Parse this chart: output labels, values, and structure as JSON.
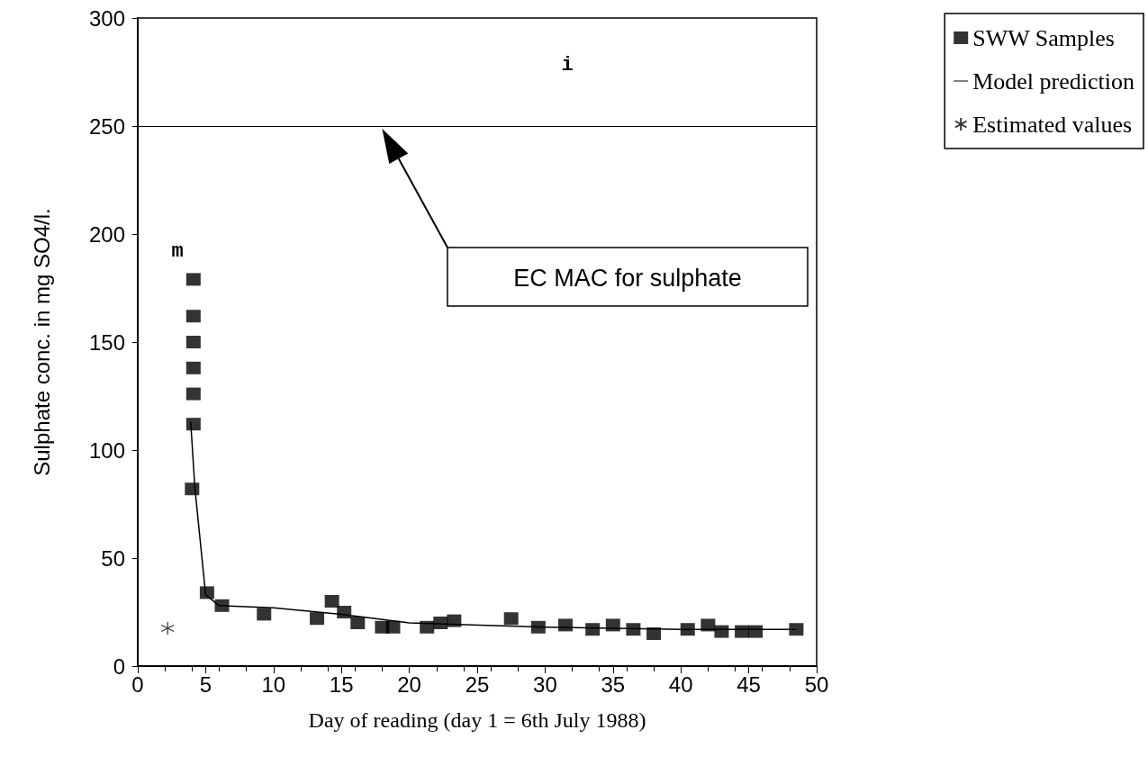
{
  "chart_data": {
    "type": "scatter",
    "xlabel": "Day of reading (day 1 = 6th July 1988)",
    "ylabel": "Sulphate conc. in mg SO4/l.",
    "xlim": [
      0,
      50
    ],
    "xticks": [
      0,
      5,
      10,
      15,
      20,
      25,
      30,
      35,
      40,
      45,
      50
    ],
    "ylim": [
      0,
      300
    ],
    "yticks": [
      0,
      50,
      100,
      150,
      200,
      250,
      300
    ],
    "grid": false,
    "legend": "right",
    "series": [
      {
        "name": "SWW Samples",
        "marker": "square",
        "color": "#000000",
        "x": [
          4.1,
          4.1,
          4.1,
          4.1,
          4.1,
          4.1,
          4,
          5.1,
          6.2,
          9.3,
          13.2,
          14.3,
          15.2,
          16.2,
          18,
          18.8,
          21.3,
          22.3,
          23.3,
          27.5,
          29.5,
          31.5,
          33.5,
          35,
          36.5,
          38,
          40.5,
          42,
          43,
          44.5,
          45.5,
          48.5
        ],
        "values": [
          179,
          162,
          150,
          138,
          126,
          112,
          82,
          34,
          28,
          24,
          22,
          30,
          25,
          20,
          18,
          18,
          18,
          20,
          21,
          22,
          18,
          19,
          17,
          19,
          17,
          15,
          17,
          19,
          16,
          16,
          16,
          17
        ]
      },
      {
        "name": "Model prediction",
        "type": "line",
        "marker": "none",
        "color": "#000000",
        "x": [
          3.9,
          4.2,
          5,
          6,
          10,
          15,
          20,
          30,
          40,
          48.5
        ],
        "values": [
          113,
          83,
          33,
          28,
          27,
          24,
          20,
          18,
          17,
          17
        ]
      },
      {
        "name": "Estimated values",
        "type": "scatter",
        "marker": "cross",
        "color": "#000000",
        "x": [
          2.2
        ],
        "values": [
          17.5
        ]
      }
    ],
    "ref_lines": [
      {
        "axis": "y",
        "value": 250,
        "color": "#000000"
      }
    ],
    "annotations": [
      "EC MAC for sulphate",
      "m",
      "i"
    ]
  }
}
